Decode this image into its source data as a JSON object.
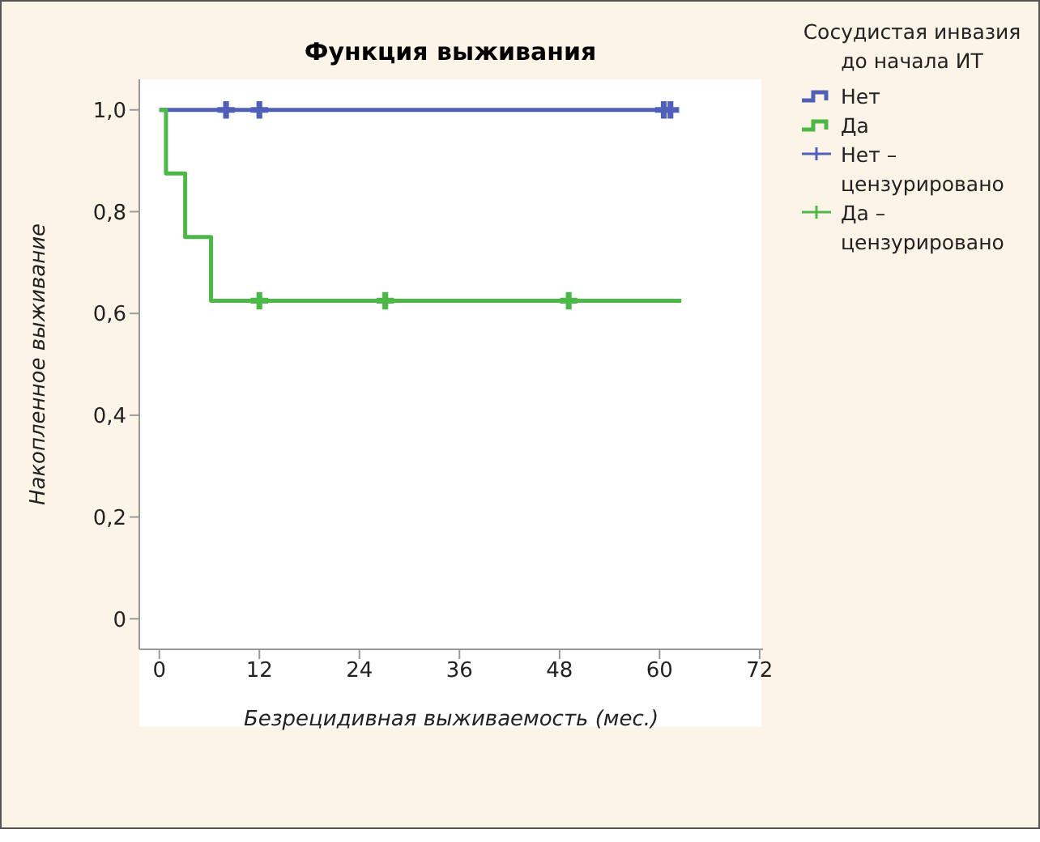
{
  "chart_data": {
    "type": "step",
    "title": "Функция выживания",
    "xlabel": "Безрецидивная выживаемость (мес.)",
    "ylabel": "Накопленное выживание",
    "legend_title": "Сосудистая инвазия до начала ИТ",
    "xlim": [
      -2.4,
      72.4
    ],
    "xticks": [
      0,
      12,
      24,
      36,
      48,
      60,
      72
    ],
    "ylim": [
      -0.06,
      1.06
    ],
    "yticks": [
      {
        "value": 0,
        "label": "0"
      },
      {
        "value": 0.2,
        "label": "0,2"
      },
      {
        "value": 0.4,
        "label": "0,4"
      },
      {
        "value": 0.6,
        "label": "0,6"
      },
      {
        "value": 0.8,
        "label": "0,8"
      },
      {
        "value": 1,
        "label": "1,0"
      }
    ],
    "series": [
      {
        "name": "Нет",
        "color": "#5060b8",
        "x": [
          0,
          61.3
        ],
        "values": [
          1,
          1
        ]
      },
      {
        "name": "Да",
        "color": "#4cb848",
        "x": [
          0,
          0.8,
          3.1,
          6.2,
          62.6
        ],
        "values": [
          1,
          0.875,
          0.75,
          0.625,
          0.625
        ]
      },
      {
        "name": "Нет – цензурировано",
        "type": "scatter",
        "marker": "cross",
        "color": "#5060b8",
        "x": [
          8,
          12,
          60.5,
          61.3
        ],
        "values": [
          1,
          1,
          1,
          1
        ]
      },
      {
        "name": "Да – цензурировано",
        "type": "scatter",
        "marker": "cross",
        "color": "#4cb848",
        "x": [
          12,
          27.1,
          49.1
        ],
        "values": [
          0.625,
          0.625,
          0.625
        ]
      }
    ],
    "legend": "right",
    "grid": false
  }
}
